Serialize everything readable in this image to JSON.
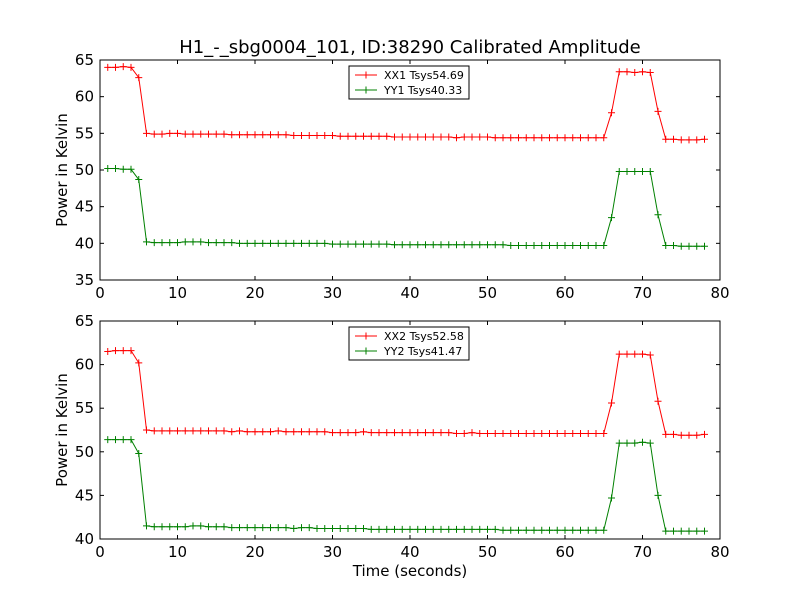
{
  "figure": {
    "title": "H1_-_sbg0004_101, ID:38290 Calibrated Amplitude"
  },
  "chart_data": [
    {
      "type": "line",
      "title": "H1_-_sbg0004_101, ID:38290 Calibrated Amplitude",
      "xlabel": "",
      "ylabel": "Power in Kelvin",
      "xlim": [
        0,
        80
      ],
      "ylim": [
        35,
        65
      ],
      "xticks": [
        0,
        10,
        20,
        30,
        40,
        50,
        60,
        70,
        80
      ],
      "yticks": [
        35,
        40,
        45,
        50,
        55,
        60,
        65
      ],
      "grid": false,
      "legend_position": "top-center",
      "x": [
        1,
        2,
        3,
        4,
        5,
        6,
        7,
        8,
        9,
        10,
        11,
        12,
        13,
        14,
        15,
        16,
        17,
        18,
        19,
        20,
        21,
        22,
        23,
        24,
        25,
        26,
        27,
        28,
        29,
        30,
        31,
        32,
        33,
        34,
        35,
        36,
        37,
        38,
        39,
        40,
        41,
        42,
        43,
        44,
        45,
        46,
        47,
        48,
        49,
        50,
        51,
        52,
        53,
        54,
        55,
        56,
        57,
        58,
        59,
        60,
        61,
        62,
        63,
        64,
        65,
        66,
        67,
        68,
        69,
        70,
        71,
        72,
        73,
        74,
        75,
        76,
        77,
        78
      ],
      "series": [
        {
          "name": "XX1 Tsys54.69",
          "color": "#ff0000",
          "values": [
            64.0,
            64.0,
            64.1,
            64.0,
            62.6,
            55.0,
            54.9,
            54.9,
            55.0,
            55.0,
            54.9,
            54.9,
            54.9,
            54.9,
            54.9,
            54.9,
            54.8,
            54.8,
            54.8,
            54.8,
            54.8,
            54.8,
            54.8,
            54.8,
            54.7,
            54.7,
            54.7,
            54.7,
            54.7,
            54.7,
            54.6,
            54.6,
            54.6,
            54.6,
            54.6,
            54.6,
            54.6,
            54.5,
            54.5,
            54.5,
            54.5,
            54.5,
            54.5,
            54.5,
            54.5,
            54.4,
            54.5,
            54.5,
            54.5,
            54.5,
            54.4,
            54.4,
            54.4,
            54.4,
            54.4,
            54.4,
            54.4,
            54.4,
            54.4,
            54.4,
            54.4,
            54.4,
            54.4,
            54.4,
            54.4,
            57.8,
            63.4,
            63.4,
            63.3,
            63.4,
            63.3,
            58.0,
            54.2,
            54.2,
            54.1,
            54.1,
            54.1,
            54.2
          ]
        },
        {
          "name": "YY1 Tsys40.33",
          "color": "#008000",
          "values": [
            50.2,
            50.2,
            50.1,
            50.1,
            48.7,
            40.2,
            40.1,
            40.1,
            40.1,
            40.1,
            40.2,
            40.2,
            40.2,
            40.1,
            40.1,
            40.1,
            40.1,
            40.0,
            40.0,
            40.0,
            40.0,
            40.0,
            40.0,
            40.0,
            40.0,
            40.0,
            40.0,
            40.0,
            40.0,
            39.9,
            39.9,
            39.9,
            39.9,
            39.9,
            39.9,
            39.9,
            39.9,
            39.8,
            39.8,
            39.8,
            39.8,
            39.8,
            39.8,
            39.8,
            39.8,
            39.8,
            39.8,
            39.8,
            39.8,
            39.8,
            39.8,
            39.8,
            39.7,
            39.7,
            39.7,
            39.7,
            39.7,
            39.7,
            39.7,
            39.7,
            39.7,
            39.7,
            39.7,
            39.7,
            39.7,
            43.5,
            49.8,
            49.8,
            49.8,
            49.8,
            49.8,
            43.9,
            39.7,
            39.7,
            39.6,
            39.6,
            39.6,
            39.6
          ]
        }
      ]
    },
    {
      "type": "line",
      "title": "",
      "xlabel": "Time (seconds)",
      "ylabel": "Power in Kelvin",
      "xlim": [
        0,
        80
      ],
      "ylim": [
        40,
        65
      ],
      "xticks": [
        0,
        10,
        20,
        30,
        40,
        50,
        60,
        70,
        80
      ],
      "yticks": [
        40,
        45,
        50,
        55,
        60,
        65
      ],
      "grid": false,
      "legend_position": "top-center",
      "x": [
        1,
        2,
        3,
        4,
        5,
        6,
        7,
        8,
        9,
        10,
        11,
        12,
        13,
        14,
        15,
        16,
        17,
        18,
        19,
        20,
        21,
        22,
        23,
        24,
        25,
        26,
        27,
        28,
        29,
        30,
        31,
        32,
        33,
        34,
        35,
        36,
        37,
        38,
        39,
        40,
        41,
        42,
        43,
        44,
        45,
        46,
        47,
        48,
        49,
        50,
        51,
        52,
        53,
        54,
        55,
        56,
        57,
        58,
        59,
        60,
        61,
        62,
        63,
        64,
        65,
        66,
        67,
        68,
        69,
        70,
        71,
        72,
        73,
        74,
        75,
        76,
        77,
        78
      ],
      "series": [
        {
          "name": "XX2 Tsys52.58",
          "color": "#ff0000",
          "values": [
            61.5,
            61.6,
            61.6,
            61.6,
            60.2,
            52.5,
            52.4,
            52.4,
            52.4,
            52.4,
            52.4,
            52.4,
            52.4,
            52.4,
            52.4,
            52.4,
            52.3,
            52.4,
            52.3,
            52.3,
            52.3,
            52.3,
            52.4,
            52.3,
            52.3,
            52.3,
            52.3,
            52.3,
            52.3,
            52.2,
            52.2,
            52.2,
            52.2,
            52.3,
            52.2,
            52.2,
            52.2,
            52.2,
            52.2,
            52.2,
            52.2,
            52.2,
            52.2,
            52.2,
            52.2,
            52.1,
            52.1,
            52.2,
            52.1,
            52.1,
            52.1,
            52.1,
            52.1,
            52.1,
            52.1,
            52.1,
            52.1,
            52.1,
            52.1,
            52.1,
            52.1,
            52.1,
            52.1,
            52.1,
            52.1,
            55.6,
            61.2,
            61.2,
            61.2,
            61.2,
            61.1,
            55.8,
            52.0,
            52.0,
            51.9,
            51.9,
            51.9,
            52.0
          ]
        },
        {
          "name": "YY2 Tsys41.47",
          "color": "#008000",
          "values": [
            51.4,
            51.4,
            51.4,
            51.4,
            49.8,
            41.5,
            41.4,
            41.4,
            41.4,
            41.4,
            41.4,
            41.5,
            41.5,
            41.4,
            41.4,
            41.4,
            41.3,
            41.3,
            41.3,
            41.3,
            41.3,
            41.3,
            41.3,
            41.3,
            41.2,
            41.3,
            41.3,
            41.2,
            41.2,
            41.2,
            41.2,
            41.2,
            41.2,
            41.2,
            41.1,
            41.1,
            41.1,
            41.1,
            41.1,
            41.1,
            41.1,
            41.1,
            41.1,
            41.1,
            41.1,
            41.1,
            41.1,
            41.1,
            41.1,
            41.1,
            41.1,
            41.0,
            41.0,
            41.0,
            41.0,
            41.0,
            41.0,
            41.0,
            41.0,
            41.0,
            41.0,
            41.0,
            41.0,
            41.0,
            41.0,
            44.7,
            51.0,
            51.0,
            51.0,
            51.1,
            51.0,
            45.0,
            40.9,
            40.9,
            40.9,
            40.9,
            40.9,
            40.9
          ]
        }
      ]
    }
  ]
}
